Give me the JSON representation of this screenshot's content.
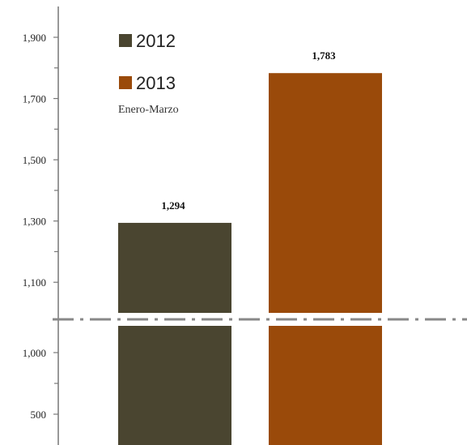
{
  "chart_data": {
    "type": "bar",
    "categories": [
      "2012",
      "2013"
    ],
    "values": [
      1294,
      1783
    ],
    "value_labels": [
      "1,294",
      "1,783"
    ],
    "colors": [
      "#4a4530",
      "#9a4a0a"
    ],
    "legend": [
      "2012",
      "2013"
    ],
    "legend_placement": "top-left",
    "subtitle": "Enero-Marzo",
    "axis_break": true,
    "upper_segment": {
      "ylim": [
        1000,
        1950
      ],
      "ticks": [
        {
          "value": 1100,
          "label": "1,100"
        },
        {
          "value": 1300,
          "label": "1,300"
        },
        {
          "value": 1500,
          "label": "1,500"
        },
        {
          "value": 1700,
          "label": "1,700"
        },
        {
          "value": 1900,
          "label": "1,900"
        }
      ]
    },
    "lower_segment": {
      "ylim": [
        250,
        1000
      ],
      "ticks": [
        {
          "value": 500,
          "label": "500"
        },
        {
          "value": 1000,
          "label": "1,000"
        }
      ]
    },
    "grid": false
  }
}
